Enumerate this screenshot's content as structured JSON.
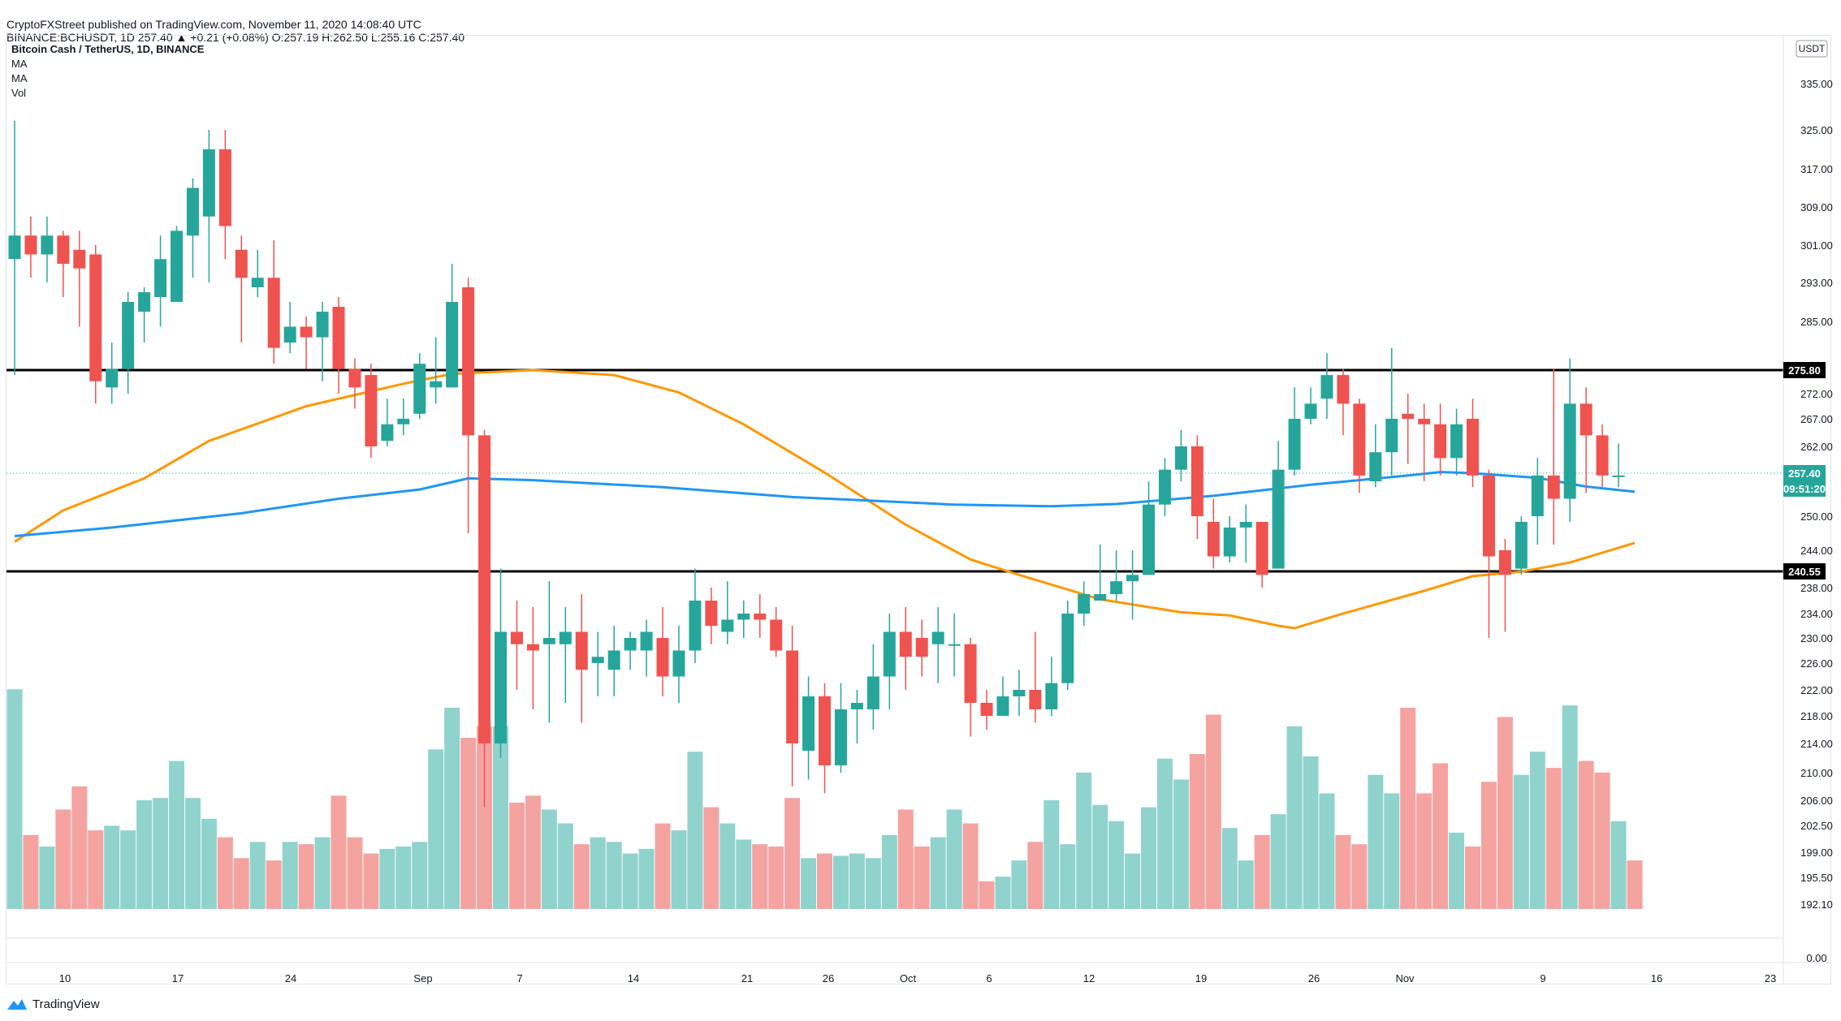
{
  "header": {
    "published_line": "CryptoFXStreet published on TradingView.com, November 11, 2020 14:08:40 UTC",
    "ohlc_line": "BINANCE:BCHUSDT, 1D  257.40  ▲ +0.21 (+0.08%)  O:257.19  H:262.50  L:255.16  C:257.40"
  },
  "legend": {
    "symbol": "Bitcoin Cash / TetherUS, 1D, BINANCE",
    "indicators": [
      "MA",
      "MA",
      "Vol"
    ]
  },
  "footer": {
    "brand": "TradingView",
    "icon": "tradingview-logo-icon"
  },
  "colors": {
    "up": "#26a69a",
    "down": "#ef5350",
    "vol_up": "#8fd3cc",
    "vol_down": "#f4a3a1",
    "ma_fast": "#2196f3",
    "ma_slow": "#ff9800",
    "level_line": "#000000",
    "last_price": "#26a69a"
  },
  "chart_data": {
    "type": "candlestick",
    "title": "Bitcoin Cash / TetherUS, 1D, BINANCE",
    "currency": "USDT",
    "y_axis_ticks": [
      "335.00",
      "325.00",
      "317.00",
      "309.00",
      "301.00",
      "293.00",
      "285.00",
      "272.00",
      "267.00",
      "262.00",
      "250.00",
      "244.00",
      "238.00",
      "234.00",
      "230.00",
      "226.00",
      "222.00",
      "218.00",
      "214.00",
      "210.00",
      "206.00",
      "202.50",
      "199.00",
      "195.50",
      "192.10",
      "0.00"
    ],
    "x_axis_ticks": [
      "10",
      "17",
      "24",
      "Sep",
      "7",
      "14",
      "21",
      "26",
      "Oct",
      "6",
      "12",
      "19",
      "26",
      "Nov",
      "9",
      "16",
      "23"
    ],
    "price_labels": [
      {
        "text": "275.80",
        "value": 275.8,
        "style": "level"
      },
      {
        "text": "257.40",
        "value": 257.4,
        "style": "last"
      },
      {
        "text": "09:51:20",
        "value": 253.4,
        "style": "countdown"
      },
      {
        "text": "240.55",
        "value": 240.55,
        "style": "level"
      }
    ],
    "horizontal_levels": [
      275.8,
      240.55
    ],
    "candles": [
      [
        298.0,
        303.0,
        327.0,
        275.0
      ],
      [
        303.0,
        299.0,
        307.0,
        294.0
      ],
      [
        299.0,
        303.0,
        307.0,
        293.0
      ],
      [
        303.0,
        297.0,
        304.0,
        290.0
      ],
      [
        300.0,
        296.0,
        304.0,
        284.0
      ],
      [
        299.0,
        274.0,
        301.0,
        270.0
      ],
      [
        273.0,
        276.0,
        281.0,
        270.0
      ],
      [
        276.0,
        289.0,
        291.0,
        272.0
      ],
      [
        287.0,
        291.0,
        292.0,
        281.0
      ],
      [
        290.0,
        298.0,
        303.0,
        284.0
      ],
      [
        289.0,
        304.0,
        305.0,
        290.0
      ],
      [
        303.0,
        313.0,
        315.0,
        294.0
      ],
      [
        307.0,
        321.0,
        325.0,
        293.0
      ],
      [
        321.0,
        305.0,
        325.0,
        298.0
      ],
      [
        300.0,
        294.0,
        303.0,
        281.0
      ],
      [
        292.0,
        294.0,
        300.0,
        290.0
      ],
      [
        294.0,
        280.0,
        302.0,
        277.0
      ],
      [
        281.0,
        284.0,
        289.0,
        279.0
      ],
      [
        284.0,
        282.0,
        286.0,
        276.0
      ],
      [
        282.0,
        287.0,
        289.0,
        274.0
      ],
      [
        288.0,
        276.0,
        290.0,
        272.0
      ],
      [
        276.0,
        273.0,
        278.0,
        269.0
      ],
      [
        275.0,
        262.0,
        277.0,
        260.0
      ],
      [
        263.0,
        266.0,
        271.0,
        262.0
      ],
      [
        266.0,
        267.0,
        271.0,
        264.0
      ],
      [
        268.0,
        277.0,
        279.0,
        267.0
      ],
      [
        273.0,
        274.0,
        282.0,
        270.0
      ],
      [
        273.0,
        289.0,
        297.0,
        273.0
      ],
      [
        292.0,
        264.0,
        294.0,
        247.0
      ],
      [
        264.0,
        214.0,
        265.0,
        205.0
      ],
      [
        214.0,
        231.0,
        241.0,
        212.0
      ],
      [
        231.0,
        229.0,
        236.0,
        222.0
      ],
      [
        229.0,
        228.0,
        235.0,
        219.0
      ],
      [
        229.0,
        230.0,
        239.0,
        217.0
      ],
      [
        229.0,
        231.0,
        235.0,
        220.0
      ],
      [
        231.0,
        225.0,
        237.0,
        217.0
      ],
      [
        226.0,
        227.0,
        231.0,
        221.0
      ],
      [
        225.0,
        228.0,
        232.0,
        221.0
      ],
      [
        228.0,
        230.0,
        231.0,
        225.0
      ],
      [
        228.0,
        231.0,
        233.0,
        224.0
      ],
      [
        230.0,
        224.0,
        235.0,
        221.0
      ],
      [
        224.0,
        228.0,
        232.0,
        220.0
      ],
      [
        228.0,
        236.0,
        241.0,
        226.0
      ],
      [
        236.0,
        232.0,
        238.0,
        229.0
      ],
      [
        231.0,
        233.0,
        239.0,
        229.0
      ],
      [
        233.0,
        234.0,
        236.0,
        230.0
      ],
      [
        234.0,
        233.0,
        237.0,
        230.0
      ],
      [
        233.0,
        228.0,
        235.0,
        227.0
      ],
      [
        228.0,
        214.0,
        232.0,
        208.0
      ],
      [
        213.0,
        221.0,
        224.0,
        209.0
      ],
      [
        221.0,
        211.0,
        223.0,
        207.0
      ],
      [
        211.0,
        219.0,
        223.0,
        210.0
      ],
      [
        219.0,
        220.0,
        222.0,
        214.0
      ],
      [
        219.0,
        224.0,
        229.0,
        216.0
      ],
      [
        224.0,
        231.0,
        234.0,
        219.0
      ],
      [
        231.0,
        227.0,
        235.0,
        222.0
      ],
      [
        230.0,
        227.0,
        233.0,
        224.0
      ],
      [
        229.0,
        231.0,
        235.0,
        223.0
      ],
      [
        229.0,
        229.0,
        234.0,
        224.0
      ],
      [
        229.0,
        220.0,
        230.0,
        215.0
      ],
      [
        220.0,
        218.0,
        222.0,
        216.0
      ],
      [
        218.0,
        221.0,
        224.0,
        218.0
      ],
      [
        221.0,
        222.0,
        225.0,
        218.0
      ],
      [
        222.0,
        219.0,
        231.0,
        217.0
      ],
      [
        219.0,
        223.0,
        227.0,
        218.0
      ],
      [
        223.0,
        234.0,
        236.0,
        222.0
      ],
      [
        234.0,
        237.0,
        239.0,
        232.0
      ],
      [
        236.0,
        237.0,
        245.0,
        236.0
      ],
      [
        237.0,
        239.0,
        244.0,
        236.0
      ],
      [
        239.0,
        240.0,
        244.0,
        233.0
      ],
      [
        240.0,
        252.0,
        256.0,
        240.0
      ],
      [
        252.0,
        258.0,
        260.0,
        250.0
      ],
      [
        258.0,
        262.0,
        265.0,
        256.0
      ],
      [
        262.0,
        250.0,
        264.0,
        246.0
      ],
      [
        249.0,
        243.0,
        253.0,
        241.0
      ],
      [
        243.0,
        248.0,
        250.0,
        242.0
      ],
      [
        248.0,
        249.0,
        252.0,
        242.0
      ],
      [
        249.0,
        240.0,
        249.0,
        238.0
      ],
      [
        241.0,
        258.0,
        263.0,
        241.0
      ],
      [
        258.0,
        267.0,
        273.0,
        257.0
      ],
      [
        267.0,
        270.0,
        273.0,
        266.0
      ],
      [
        271.0,
        275.0,
        279.0,
        267.0
      ],
      [
        275.0,
        270.0,
        276.0,
        264.0
      ],
      [
        270.0,
        257.0,
        271.0,
        254.0
      ],
      [
        256.0,
        261.0,
        266.0,
        255.0
      ],
      [
        261.0,
        267.0,
        280.0,
        257.0
      ],
      [
        268.0,
        267.0,
        272.0,
        259.0
      ],
      [
        267.0,
        266.0,
        270.0,
        256.0
      ],
      [
        266.0,
        260.0,
        270.0,
        257.0
      ],
      [
        260.0,
        266.0,
        269.0,
        257.0
      ],
      [
        267.0,
        257.0,
        271.0,
        255.0
      ],
      [
        257.0,
        243.0,
        258.0,
        230.0
      ],
      [
        244.0,
        240.0,
        246.0,
        231.0
      ],
      [
        241.0,
        249.0,
        250.0,
        240.0
      ],
      [
        250.0,
        257.0,
        260.0,
        245.0
      ],
      [
        257.0,
        253.0,
        276.0,
        245.0
      ],
      [
        253.0,
        270.0,
        278.0,
        249.0
      ],
      [
        270.0,
        264.0,
        273.0,
        254.0
      ],
      [
        264.0,
        257.0,
        266.0,
        255.0
      ],
      [
        257.0,
        257.0,
        262.5,
        255.0
      ]
    ],
    "volumes": [
      9500000,
      3200000,
      2700000,
      4300000,
      5300000,
      3400000,
      3600000,
      3400000,
      4700000,
      4800000,
      6400000,
      4800000,
      3900000,
      3100000,
      2200000,
      2900000,
      2100000,
      2900000,
      2800000,
      3100000,
      4900000,
      3100000,
      2400000,
      2600000,
      2700000,
      2900000,
      6900000,
      8700000,
      7400000,
      7900000,
      7900000,
      4600000,
      4900000,
      4300000,
      3700000,
      2800000,
      3100000,
      2900000,
      2400000,
      2600000,
      3700000,
      3400000,
      6800000,
      4400000,
      3700000,
      3000000,
      2800000,
      2700000,
      4800000,
      2200000,
      2400000,
      2300000,
      2400000,
      2200000,
      3200000,
      4300000,
      2700000,
      3100000,
      4300000,
      3700000,
      1200000,
      1400000,
      2100000,
      2900000,
      4700000,
      2800000,
      5900000,
      4500000,
      3800000,
      2400000,
      4400000,
      6500000,
      5600000,
      6700000,
      8400000,
      3500000,
      2100000,
      3200000,
      4100000,
      7900000,
      6600000,
      5000000,
      3200000,
      2800000,
      5800000,
      5000000,
      8700000,
      5000000,
      6300000,
      3300000,
      2700000,
      5500000,
      8300000,
      5800000,
      6800000,
      6100000,
      8800000,
      6400000,
      5900000,
      3800000,
      2100000
    ],
    "ma_fast": [
      {
        "i": 0,
        "v": 246.5
      },
      {
        "i": 6,
        "v": 248.0
      },
      {
        "i": 14,
        "v": 250.5
      },
      {
        "i": 20,
        "v": 253.0
      },
      {
        "i": 25,
        "v": 254.6
      },
      {
        "i": 28,
        "v": 256.5
      },
      {
        "i": 32,
        "v": 256.2
      },
      {
        "i": 40,
        "v": 255.0
      },
      {
        "i": 48,
        "v": 253.3
      },
      {
        "i": 58,
        "v": 252.0
      },
      {
        "i": 64,
        "v": 251.7
      },
      {
        "i": 68,
        "v": 252.1
      },
      {
        "i": 74,
        "v": 253.5
      },
      {
        "i": 80,
        "v": 255.4
      },
      {
        "i": 86,
        "v": 257.0
      },
      {
        "i": 88,
        "v": 257.6
      },
      {
        "i": 90,
        "v": 257.4
      },
      {
        "i": 94,
        "v": 256.6
      },
      {
        "i": 97,
        "v": 255.1
      },
      {
        "i": 100,
        "v": 254.2
      }
    ],
    "ma_slow": [
      {
        "i": 0,
        "v": 245.5
      },
      {
        "i": 3,
        "v": 251.0
      },
      {
        "i": 8,
        "v": 256.5
      },
      {
        "i": 12,
        "v": 263.0
      },
      {
        "i": 18,
        "v": 269.5
      },
      {
        "i": 24,
        "v": 273.6
      },
      {
        "i": 27,
        "v": 275.2
      },
      {
        "i": 32,
        "v": 275.8
      },
      {
        "i": 37,
        "v": 275.0
      },
      {
        "i": 41,
        "v": 272.2
      },
      {
        "i": 45,
        "v": 266.0
      },
      {
        "i": 50,
        "v": 257.5
      },
      {
        "i": 55,
        "v": 248.5
      },
      {
        "i": 59,
        "v": 242.5
      },
      {
        "i": 62,
        "v": 240.0
      },
      {
        "i": 67,
        "v": 236.2
      },
      {
        "i": 72,
        "v": 234.2
      },
      {
        "i": 75,
        "v": 233.7
      },
      {
        "i": 78,
        "v": 232.0
      },
      {
        "i": 79,
        "v": 231.6
      },
      {
        "i": 82,
        "v": 234.0
      },
      {
        "i": 87,
        "v": 237.5
      },
      {
        "i": 90,
        "v": 239.8
      },
      {
        "i": 93,
        "v": 240.5
      },
      {
        "i": 96,
        "v": 242.0
      },
      {
        "i": 100,
        "v": 245.3
      }
    ]
  }
}
